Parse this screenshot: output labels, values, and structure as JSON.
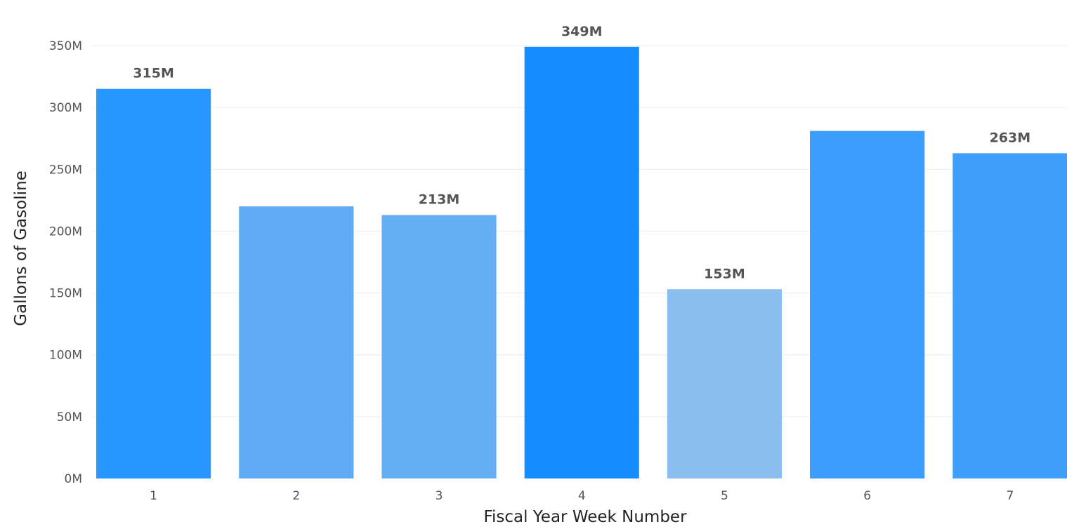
{
  "chart_data": {
    "type": "bar",
    "title": "",
    "xlabel": "Fiscal Year Week Number",
    "ylabel": "Gallons of Gasoline",
    "categories": [
      "1",
      "2",
      "3",
      "4",
      "5",
      "6",
      "7"
    ],
    "values": [
      315,
      220,
      213,
      349,
      153,
      281,
      263
    ],
    "unit_suffix": "M",
    "data_labels": [
      "315M",
      "",
      "213M",
      "349M",
      "153M",
      "",
      "263M"
    ],
    "bar_colors": [
      "#2897FF",
      "#61ABF6",
      "#64AFF4",
      "#158CFF",
      "#8ABEEE",
      "#3B9DFC",
      "#3F9FFA"
    ],
    "ylim": [
      0,
      350
    ],
    "y_ticks": [
      0,
      50,
      100,
      150,
      200,
      250,
      300,
      350
    ],
    "y_tick_labels": [
      "0M",
      "50M",
      "100M",
      "150M",
      "200M",
      "250M",
      "300M",
      "350M"
    ],
    "grid": true,
    "legend": "none"
  }
}
